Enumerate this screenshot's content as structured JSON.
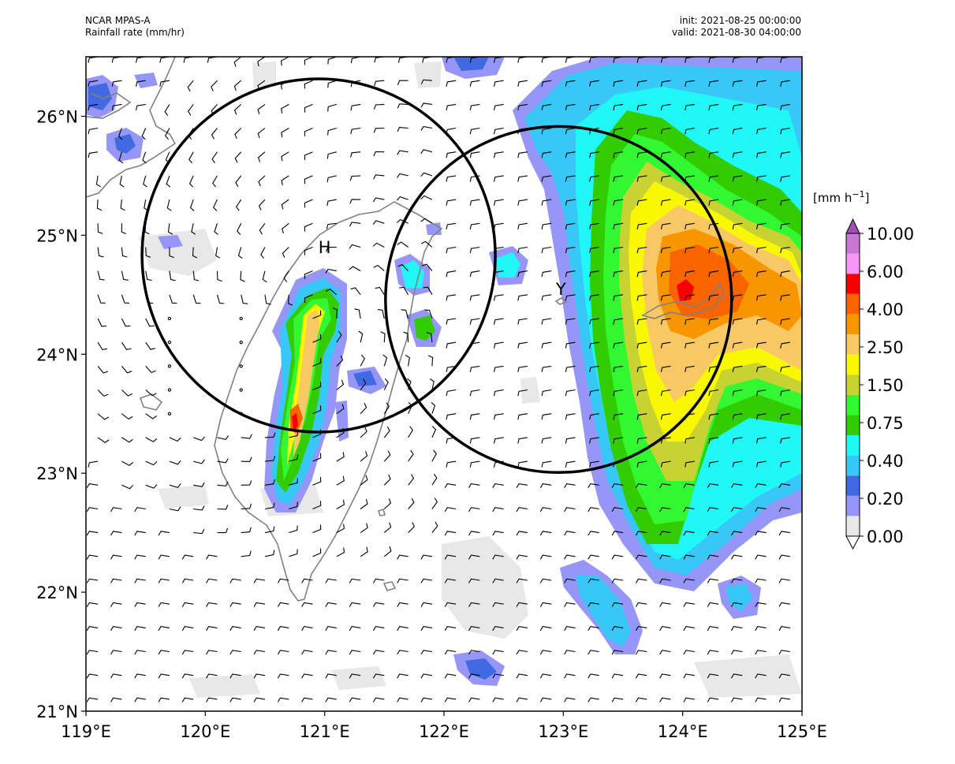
{
  "header": {
    "model": "NCAR MPAS-A",
    "field": "Rainfall rate (mm/hr)",
    "init": "init: 2021-08-25 00:00:00",
    "valid": "valid: 2021-08-30 04:00:00"
  },
  "axes": {
    "lon_ticks": [
      "119°E",
      "120°E",
      "121°E",
      "122°E",
      "123°E",
      "124°E",
      "125°E"
    ],
    "lat_ticks": [
      "21°N",
      "22°N",
      "23°N",
      "24°N",
      "25°N",
      "26°N"
    ],
    "lon_range": [
      119,
      125
    ],
    "lat_range": [
      21,
      26.5
    ]
  },
  "colorbar": {
    "unit_text": "[mm h",
    "unit_sup": "−1",
    "unit_close": "]",
    "labels": [
      "0.00",
      "0.20",
      "0.40",
      "0.75",
      "1.50",
      "2.50",
      "4.00",
      "6.00",
      "10.00"
    ],
    "colors": [
      "#ffffff",
      "#e8e8e8",
      "#9696f8",
      "#4169e1",
      "#38c8f8",
      "#20f8f8",
      "#32cd00",
      "#32f832",
      "#c8d232",
      "#f8f800",
      "#f8c864",
      "#f89600",
      "#f86400",
      "#f80000",
      "#f896f8",
      "#c878d2",
      "#a050b4"
    ]
  },
  "markers": [
    {
      "label": "H",
      "lon": 121.0,
      "lat": 24.85
    },
    {
      "label": "Y",
      "lon": 122.98,
      "lat": 24.5
    }
  ],
  "circles": [
    {
      "center_lon": 120.95,
      "center_lat": 24.83,
      "radius_deg": 1.48
    },
    {
      "center_lon": 122.96,
      "center_lat": 24.46,
      "radius_deg": 1.45
    }
  ],
  "colors": {
    "coast": "#808080",
    "circle": "#000000",
    "barb": "#000000"
  }
}
